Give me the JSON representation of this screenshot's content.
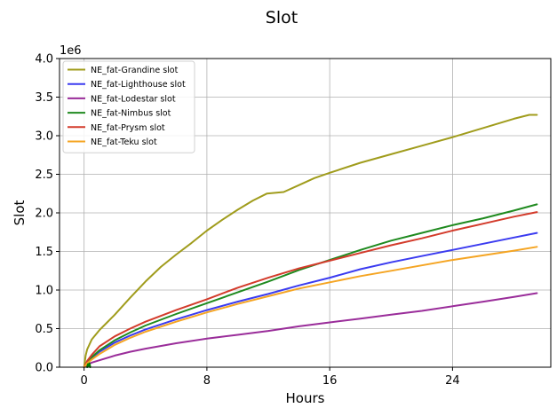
{
  "chart_data": {
    "type": "line",
    "title": "Slot",
    "xlabel": "Hours",
    "ylabel": "Slot",
    "y_offset_label": "1e6",
    "xlim": [
      -1.6,
      30.4
    ],
    "ylim": [
      0,
      4000000
    ],
    "xticks": [
      0,
      8,
      16,
      24
    ],
    "xtick_labels": [
      "0",
      "8",
      "16",
      "24"
    ],
    "yticks": [
      0,
      500000,
      1000000,
      1500000,
      2000000,
      2500000,
      3000000,
      3500000,
      4000000
    ],
    "ytick_labels": [
      "0.0",
      "0.5",
      "1.0",
      "1.5",
      "2.0",
      "2.5",
      "3.0",
      "3.5",
      "4.0"
    ],
    "grid": true,
    "legend_position": "top-left",
    "series": [
      {
        "name": "NE_fat-Grandine slot",
        "color": "#a09c1c",
        "x": [
          0,
          0.1,
          0.2,
          0.5,
          1,
          1.5,
          2,
          3,
          4,
          5,
          6,
          7,
          8,
          9,
          10,
          11,
          11.9,
          13,
          14,
          15,
          16,
          18,
          20,
          22,
          24,
          26,
          28,
          29,
          29.5
        ],
        "y": [
          0,
          150000,
          230000,
          360000,
          480000,
          580000,
          680000,
          900000,
          1110000,
          1300000,
          1460000,
          1610000,
          1770000,
          1910000,
          2040000,
          2160000,
          2250000,
          2270000,
          2360000,
          2450000,
          2520000,
          2650000,
          2760000,
          2870000,
          2980000,
          3100000,
          3220000,
          3270000,
          3270000
        ]
      },
      {
        "name": "NE_fat-Lighthouse slot",
        "color": "#3b3bf0",
        "x": [
          0,
          0.2,
          0.5,
          1,
          2,
          3,
          4,
          6,
          8,
          10,
          12,
          14,
          16,
          18,
          20,
          22,
          24,
          26,
          28,
          29.5
        ],
        "y": [
          0,
          60000,
          120000,
          200000,
          320000,
          410000,
          490000,
          620000,
          740000,
          850000,
          950000,
          1060000,
          1160000,
          1270000,
          1360000,
          1440000,
          1520000,
          1600000,
          1680000,
          1740000
        ]
      },
      {
        "name": "NE_fat-Lodestar slot",
        "color": "#9a2d9a",
        "x": [
          0,
          0.2,
          0.5,
          1,
          2,
          3,
          4,
          6,
          8,
          10,
          12,
          14,
          16,
          18,
          20,
          22,
          24,
          26,
          28,
          29.5
        ],
        "y": [
          0,
          30000,
          60000,
          90000,
          150000,
          200000,
          240000,
          310000,
          370000,
          420000,
          470000,
          530000,
          580000,
          630000,
          680000,
          730000,
          790000,
          850000,
          910000,
          960000
        ]
      },
      {
        "name": "NE_fat-Nimbus slot",
        "color": "#1f8a1f",
        "x": [
          0,
          0.2,
          0.5,
          1,
          2,
          3,
          4,
          6,
          8,
          10,
          12,
          14,
          16,
          18,
          20,
          22,
          24,
          26,
          28,
          29.5
        ],
        "y": [
          0,
          70000,
          130000,
          220000,
          350000,
          450000,
          540000,
          690000,
          830000,
          970000,
          1110000,
          1260000,
          1390000,
          1520000,
          1640000,
          1740000,
          1840000,
          1930000,
          2030000,
          2110000
        ]
      },
      {
        "name": "NE_fat-Prysm slot",
        "color": "#d33b2b",
        "x": [
          0,
          0.2,
          0.5,
          1,
          2,
          3,
          4,
          6,
          8,
          10,
          12,
          14,
          16,
          18,
          20,
          22,
          24,
          26,
          28,
          29.5
        ],
        "y": [
          0,
          80000,
          160000,
          270000,
          400000,
          500000,
          590000,
          740000,
          880000,
          1030000,
          1160000,
          1280000,
          1380000,
          1480000,
          1580000,
          1670000,
          1770000,
          1860000,
          1950000,
          2010000
        ]
      },
      {
        "name": "NE_fat-Teku slot",
        "color": "#f5a523",
        "x": [
          0,
          0.2,
          0.5,
          1,
          2,
          3,
          4,
          6,
          8,
          10,
          12,
          14,
          16,
          18,
          20,
          22,
          24,
          26,
          28,
          29.5
        ],
        "y": [
          0,
          50000,
          100000,
          170000,
          290000,
          380000,
          460000,
          590000,
          710000,
          820000,
          920000,
          1020000,
          1100000,
          1180000,
          1250000,
          1320000,
          1390000,
          1450000,
          1510000,
          1560000
        ]
      },
      {
        "name": "",
        "color": "#008000",
        "x": [
          0.2,
          0.25,
          0.3,
          0.35,
          0.4
        ],
        "y": [
          0,
          40000,
          20000,
          50000,
          0
        ]
      }
    ]
  }
}
